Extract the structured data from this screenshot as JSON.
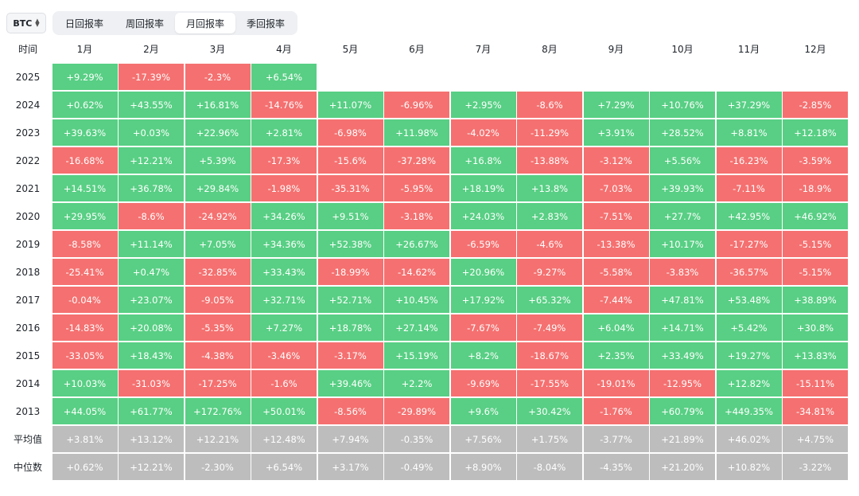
{
  "asset_select": {
    "value": "BTC",
    "icon": "chevron-updown-icon"
  },
  "tabs": [
    {
      "label": "日回报率",
      "active": false
    },
    {
      "label": "周回报率",
      "active": false
    },
    {
      "label": "月回报率",
      "active": true
    },
    {
      "label": "季回报率",
      "active": false
    }
  ],
  "colors": {
    "positive": "#58cf84",
    "negative": "#f57070",
    "stat": "#bdbdbd"
  },
  "table": {
    "corner_label": "时间",
    "months": [
      "1月",
      "2月",
      "3月",
      "4月",
      "5月",
      "6月",
      "7月",
      "8月",
      "9月",
      "10月",
      "11月",
      "12月"
    ],
    "rows": [
      {
        "year": "2025",
        "values": [
          "+9.29%",
          "-17.39%",
          "-2.3%",
          "+6.54%",
          "",
          "",
          "",
          "",
          "",
          "",
          "",
          ""
        ]
      },
      {
        "year": "2024",
        "values": [
          "+0.62%",
          "+43.55%",
          "+16.81%",
          "-14.76%",
          "+11.07%",
          "-6.96%",
          "+2.95%",
          "-8.6%",
          "+7.29%",
          "+10.76%",
          "+37.29%",
          "-2.85%"
        ]
      },
      {
        "year": "2023",
        "values": [
          "+39.63%",
          "+0.03%",
          "+22.96%",
          "+2.81%",
          "-6.98%",
          "+11.98%",
          "-4.02%",
          "-11.29%",
          "+3.91%",
          "+28.52%",
          "+8.81%",
          "+12.18%"
        ]
      },
      {
        "year": "2022",
        "values": [
          "-16.68%",
          "+12.21%",
          "+5.39%",
          "-17.3%",
          "-15.6%",
          "-37.28%",
          "+16.8%",
          "-13.88%",
          "-3.12%",
          "+5.56%",
          "-16.23%",
          "-3.59%"
        ]
      },
      {
        "year": "2021",
        "values": [
          "+14.51%",
          "+36.78%",
          "+29.84%",
          "-1.98%",
          "-35.31%",
          "-5.95%",
          "+18.19%",
          "+13.8%",
          "-7.03%",
          "+39.93%",
          "-7.11%",
          "-18.9%"
        ]
      },
      {
        "year": "2020",
        "values": [
          "+29.95%",
          "-8.6%",
          "-24.92%",
          "+34.26%",
          "+9.51%",
          "-3.18%",
          "+24.03%",
          "+2.83%",
          "-7.51%",
          "+27.7%",
          "+42.95%",
          "+46.92%"
        ]
      },
      {
        "year": "2019",
        "values": [
          "-8.58%",
          "+11.14%",
          "+7.05%",
          "+34.36%",
          "+52.38%",
          "+26.67%",
          "-6.59%",
          "-4.6%",
          "-13.38%",
          "+10.17%",
          "-17.27%",
          "-5.15%"
        ]
      },
      {
        "year": "2018",
        "values": [
          "-25.41%",
          "+0.47%",
          "-32.85%",
          "+33.43%",
          "-18.99%",
          "-14.62%",
          "+20.96%",
          "-9.27%",
          "-5.58%",
          "-3.83%",
          "-36.57%",
          "-5.15%"
        ]
      },
      {
        "year": "2017",
        "values": [
          "-0.04%",
          "+23.07%",
          "-9.05%",
          "+32.71%",
          "+52.71%",
          "+10.45%",
          "+17.92%",
          "+65.32%",
          "-7.44%",
          "+47.81%",
          "+53.48%",
          "+38.89%"
        ]
      },
      {
        "year": "2016",
        "values": [
          "-14.83%",
          "+20.08%",
          "-5.35%",
          "+7.27%",
          "+18.78%",
          "+27.14%",
          "-7.67%",
          "-7.49%",
          "+6.04%",
          "+14.71%",
          "+5.42%",
          "+30.8%"
        ]
      },
      {
        "year": "2015",
        "values": [
          "-33.05%",
          "+18.43%",
          "-4.38%",
          "-3.46%",
          "-3.17%",
          "+15.19%",
          "+8.2%",
          "-18.67%",
          "+2.35%",
          "+33.49%",
          "+19.27%",
          "+13.83%"
        ]
      },
      {
        "year": "2014",
        "values": [
          "+10.03%",
          "-31.03%",
          "-17.25%",
          "-1.6%",
          "+39.46%",
          "+2.2%",
          "-9.69%",
          "-17.55%",
          "-19.01%",
          "-12.95%",
          "+12.82%",
          "-15.11%"
        ]
      },
      {
        "year": "2013",
        "values": [
          "+44.05%",
          "+61.77%",
          "+172.76%",
          "+50.01%",
          "-8.56%",
          "-29.89%",
          "+9.6%",
          "+30.42%",
          "-1.76%",
          "+60.79%",
          "+449.35%",
          "-34.81%"
        ]
      }
    ],
    "stats": [
      {
        "label": "平均值",
        "values": [
          "+3.81%",
          "+13.12%",
          "+12.21%",
          "+12.48%",
          "+7.94%",
          "-0.35%",
          "+7.56%",
          "+1.75%",
          "-3.77%",
          "+21.89%",
          "+46.02%",
          "+4.75%"
        ]
      },
      {
        "label": "中位数",
        "values": [
          "+0.62%",
          "+12.21%",
          "-2.30%",
          "+6.54%",
          "+3.17%",
          "-0.49%",
          "+8.90%",
          "-8.04%",
          "-4.35%",
          "+21.20%",
          "+10.82%",
          "-3.22%"
        ]
      }
    ]
  }
}
